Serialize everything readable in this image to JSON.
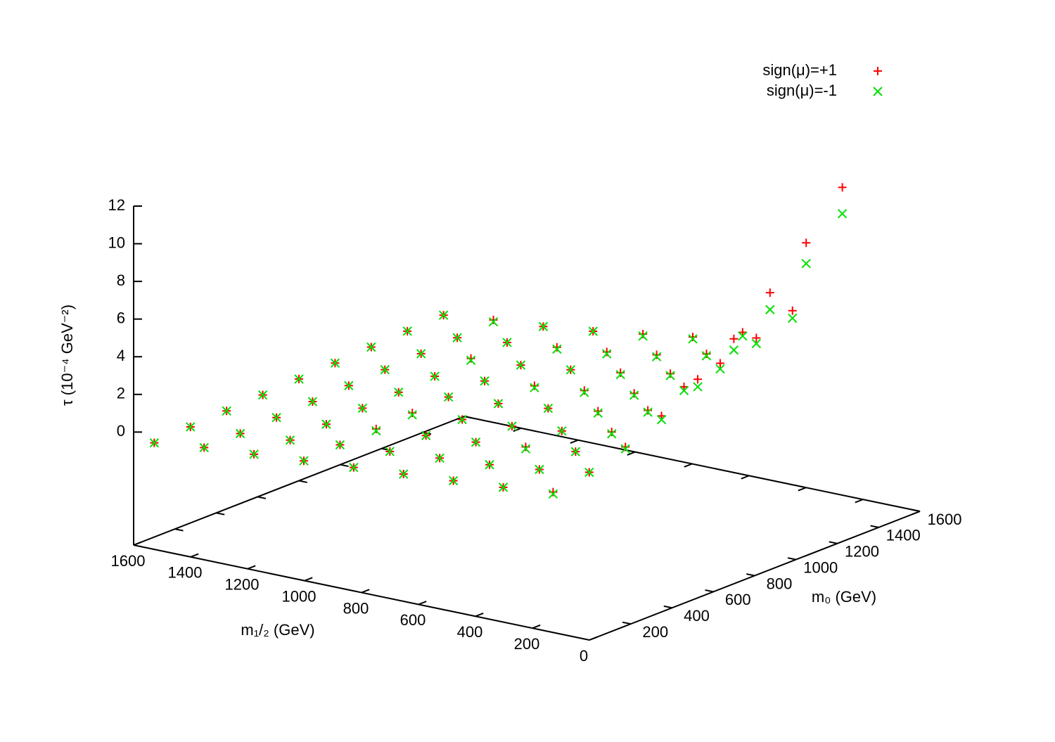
{
  "chart_data": {
    "type": "scatter3d",
    "xlabel": "m₀ (GeV)",
    "ylabel": "m₁/₂ (GeV)",
    "zlabel": "τ (10⁻⁴ GeV⁻²)",
    "xlim": [
      0,
      1600
    ],
    "xticks": [
      200,
      400,
      600,
      800,
      1000,
      1200,
      1400,
      1600
    ],
    "ylim": [
      0,
      1600
    ],
    "yticks": [
      0,
      200,
      400,
      600,
      800,
      1000,
      1200,
      1400,
      1600
    ],
    "zlim": [
      -6,
      12
    ],
    "zticks": [
      0,
      2,
      4,
      6,
      8,
      10,
      12
    ],
    "legend": "top-right",
    "series": [
      {
        "name": "sign(μ)=+1",
        "color": "#ff0000",
        "marker": "plus",
        "x": [
          100,
          275,
          450,
          625,
          800,
          975,
          1150,
          1325,
          1500,
          100,
          275,
          450,
          625,
          800,
          975,
          1150,
          1325,
          1500,
          100,
          275,
          450,
          625,
          800,
          975,
          1150,
          1325,
          1500,
          100,
          275,
          450,
          625,
          800,
          975,
          1150,
          1325,
          1500,
          100,
          275,
          450,
          625,
          800,
          975,
          1150,
          1325,
          1500,
          100,
          275,
          450,
          625,
          800,
          975,
          1150,
          1325,
          1500,
          100,
          275,
          450,
          625,
          800,
          975,
          1150,
          1325,
          1500,
          100,
          275,
          450,
          625,
          800,
          975,
          1150,
          1325,
          1500,
          100,
          275,
          450,
          625,
          800,
          975,
          1150,
          1325,
          1500
        ],
        "y": [
          200,
          200,
          200,
          200,
          200,
          200,
          200,
          200,
          200,
          375,
          375,
          375,
          375,
          375,
          375,
          375,
          375,
          375,
          550,
          550,
          550,
          550,
          550,
          550,
          550,
          550,
          550,
          725,
          725,
          725,
          725,
          725,
          725,
          725,
          725,
          725,
          900,
          900,
          900,
          900,
          900,
          900,
          900,
          900,
          900,
          1075,
          1075,
          1075,
          1075,
          1075,
          1075,
          1075,
          1075,
          1075,
          1250,
          1250,
          1250,
          1250,
          1250,
          1250,
          1250,
          1250,
          1250,
          1425,
          1425,
          1425,
          1425,
          1425,
          1425,
          1425,
          1425,
          1425,
          1600,
          1600,
          1600,
          1600,
          1600,
          1600,
          1600,
          1600,
          1600
        ],
        "z": [
          0.8,
          1.1,
          1.7,
          2.6,
          3.8,
          5.2,
          6.9,
          8.8,
          11.0,
          0.5,
          0.7,
          0.9,
          1.2,
          1.6,
          2.1,
          2.6,
          3.2,
          3.9,
          0.3,
          0.4,
          0.6,
          0.7,
          1.0,
          1.2,
          1.5,
          1.8,
          2.2,
          0.1,
          0.2,
          0.3,
          0.4,
          0.6,
          0.8,
          1.0,
          1.2,
          1.4,
          -0.1,
          0.0,
          0.1,
          0.2,
          0.3,
          0.5,
          0.6,
          0.8,
          1.0,
          -0.3,
          -0.2,
          -0.1,
          0.0,
          0.1,
          0.2,
          0.3,
          0.5,
          0.6,
          -0.5,
          -0.5,
          -0.4,
          -0.3,
          -0.2,
          -0.1,
          0.1,
          0.2,
          0.3,
          -0.7,
          -0.7,
          -0.6,
          -0.5,
          -0.4,
          -0.3,
          -0.2,
          -0.1,
          0.1,
          -1.0,
          -0.9,
          -0.8,
          -0.7,
          -0.6,
          -0.5,
          -0.4,
          -0.3,
          -0.2
        ]
      },
      {
        "name": "sign(μ)=-1",
        "color": "#00e000",
        "marker": "cross",
        "x": [
          100,
          275,
          450,
          625,
          800,
          975,
          1150,
          1325,
          1500,
          100,
          275,
          450,
          625,
          800,
          975,
          1150,
          1325,
          1500,
          100,
          275,
          450,
          625,
          800,
          975,
          1150,
          1325,
          1500,
          100,
          275,
          450,
          625,
          800,
          975,
          1150,
          1325,
          1500,
          100,
          275,
          450,
          625,
          800,
          975,
          1150,
          1325,
          1500,
          100,
          275,
          450,
          625,
          800,
          975,
          1150,
          1325,
          1500,
          100,
          275,
          450,
          625,
          800,
          975,
          1150,
          1325,
          1500,
          100,
          275,
          450,
          625,
          800,
          975,
          1150,
          1325,
          1500,
          100,
          275,
          450,
          625,
          800,
          975,
          1150,
          1325,
          1500
        ],
        "y": [
          200,
          200,
          200,
          200,
          200,
          200,
          200,
          200,
          200,
          375,
          375,
          375,
          375,
          375,
          375,
          375,
          375,
          375,
          550,
          550,
          550,
          550,
          550,
          550,
          550,
          550,
          550,
          725,
          725,
          725,
          725,
          725,
          725,
          725,
          725,
          725,
          900,
          900,
          900,
          900,
          900,
          900,
          900,
          900,
          900,
          1075,
          1075,
          1075,
          1075,
          1075,
          1075,
          1075,
          1075,
          1075,
          1250,
          1250,
          1250,
          1250,
          1250,
          1250,
          1250,
          1250,
          1250,
          1425,
          1425,
          1425,
          1425,
          1425,
          1425,
          1425,
          1425,
          1425,
          1600,
          1600,
          1600,
          1600,
          1600,
          1600,
          1600,
          1600,
          1600
        ],
        "z": [
          0.7,
          1.1,
          1.6,
          2.4,
          3.4,
          4.6,
          6.0,
          7.7,
          9.6,
          0.5,
          0.7,
          0.9,
          1.1,
          1.5,
          1.9,
          2.3,
          2.9,
          3.5,
          0.3,
          0.4,
          0.5,
          0.7,
          0.9,
          1.1,
          1.4,
          1.7,
          2.0,
          0.1,
          0.2,
          0.3,
          0.4,
          0.6,
          0.7,
          0.9,
          1.1,
          1.3,
          -0.1,
          0.0,
          0.1,
          0.2,
          0.3,
          0.4,
          0.6,
          0.7,
          0.9,
          -0.3,
          -0.2,
          -0.2,
          -0.1,
          0.1,
          0.2,
          0.3,
          0.4,
          0.6,
          -0.5,
          -0.5,
          -0.4,
          -0.3,
          -0.2,
          -0.1,
          0.0,
          0.2,
          0.3,
          -0.7,
          -0.7,
          -0.6,
          -0.5,
          -0.4,
          -0.3,
          -0.2,
          -0.1,
          0.0,
          -1.0,
          -0.9,
          -0.8,
          -0.7,
          -0.6,
          -0.5,
          -0.4,
          -0.3,
          -0.2
        ]
      }
    ]
  }
}
